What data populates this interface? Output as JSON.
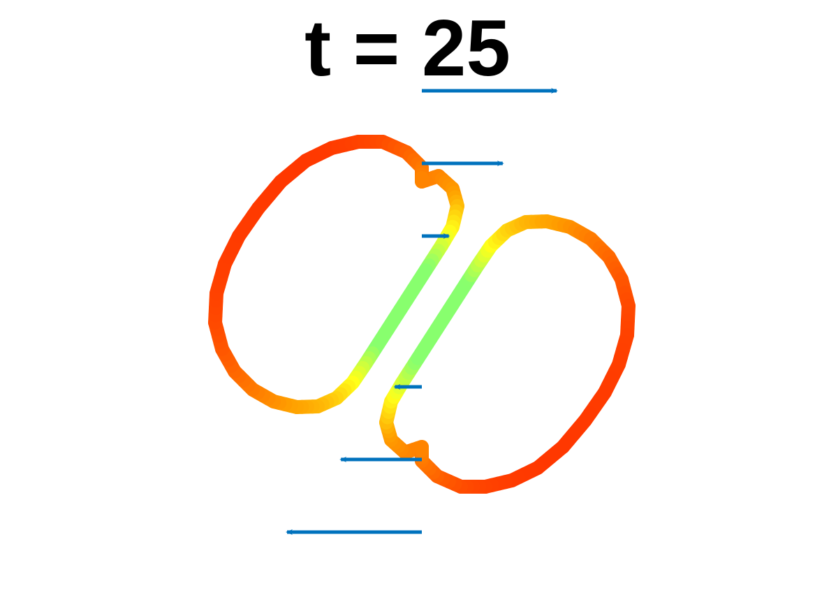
{
  "title": "t = 25",
  "colors": {
    "arrow": "#0072BD",
    "colormap": [
      "#FF2D00",
      "#FF6A00",
      "#FFA000",
      "#FFFF1A",
      "#88FF6E"
    ]
  },
  "chart_data": {
    "type": "diagram",
    "description_free": true,
    "velocity_arrows": [
      {
        "y": 3,
        "u": 1.0
      },
      {
        "y": 2,
        "u": 0.6
      },
      {
        "y": 1,
        "u": 0.2
      },
      {
        "y": -1,
        "u": -0.2
      },
      {
        "y": -2,
        "u": -0.6
      },
      {
        "y": -3,
        "u": -1.0
      }
    ]
  }
}
